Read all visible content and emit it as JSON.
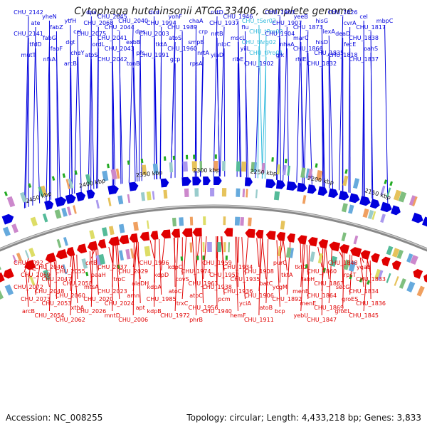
{
  "title": "Cytophaga hutchinsonii ATCC 33406, complete genome",
  "footer": {
    "accession": "Accession: NC_008255",
    "summary": "Topology: circular; Length: 4,433,218 bp; Genes: 3,833"
  },
  "colors": {
    "plus_strand": "#0000dd",
    "minus_strand": "#e00000",
    "trna": "#33bbdd",
    "backbone": "#888888",
    "tick": "#22aa22"
  },
  "scale_labels": [
    "2450 kbp",
    "2400 kbp",
    "2350 kbp",
    "2300 kbp",
    "2250 kbp",
    "2200 kbp",
    "2150 kbp"
  ],
  "top_labels": [
    {
      "text": "CHU_2142",
      "kind": "cds"
    },
    {
      "text": "ate",
      "kind": "cds"
    },
    {
      "text": "CHU_2141",
      "kind": "cds"
    },
    {
      "text": "tfdD",
      "kind": "cds"
    },
    {
      "text": "mutT",
      "kind": "cds"
    },
    {
      "text": "yheN",
      "kind": "cds"
    },
    {
      "text": "fabZ",
      "kind": "cds"
    },
    {
      "text": "fabG",
      "kind": "cds"
    },
    {
      "text": "fabF",
      "kind": "cds"
    },
    {
      "text": "nfsA",
      "kind": "cds"
    },
    {
      "text": "ytfH",
      "kind": "cds"
    },
    {
      "text": "cel",
      "kind": "cds"
    },
    {
      "text": "dgt",
      "kind": "cds"
    },
    {
      "text": "cheY",
      "kind": "cds"
    },
    {
      "text": "arcB",
      "kind": "cds"
    },
    {
      "text": "dps",
      "kind": "cds"
    },
    {
      "text": "CHU_2068",
      "kind": "cds"
    },
    {
      "text": "CHU_2075",
      "kind": "cds"
    },
    {
      "text": "ordL",
      "kind": "cds"
    },
    {
      "text": "atoS",
      "kind": "cds"
    },
    {
      "text": "CHU_2045",
      "kind": "cds"
    },
    {
      "text": "CHU_2044",
      "kind": "cds"
    },
    {
      "text": "CHU_2041",
      "kind": "cds"
    },
    {
      "text": "CHU_2043",
      "kind": "cds"
    },
    {
      "text": "CHU_2042",
      "kind": "cds"
    },
    {
      "text": "CHU_2040",
      "kind": "cds"
    },
    {
      "text": "dps",
      "kind": "cds"
    },
    {
      "text": "exbB",
      "kind": "cds"
    },
    {
      "text": "pfs",
      "kind": "cds"
    },
    {
      "text": "tonB",
      "kind": "cds"
    },
    {
      "text": "dcd",
      "kind": "cds"
    },
    {
      "text": "CHU_1994",
      "kind": "cds"
    },
    {
      "text": "CHU_2003",
      "kind": "cds"
    },
    {
      "text": "tktA",
      "kind": "cds"
    },
    {
      "text": "CHU_1991",
      "kind": "cds"
    },
    {
      "text": "yohF",
      "kind": "cds"
    },
    {
      "text": "CHU_1989",
      "kind": "cds"
    },
    {
      "text": "atoS",
      "kind": "cds"
    },
    {
      "text": "CHU_1960",
      "kind": "cds"
    },
    {
      "text": "gcp",
      "kind": "cds"
    },
    {
      "text": "chaA",
      "kind": "cds"
    },
    {
      "text": "crp",
      "kind": "cds"
    },
    {
      "text": "smpB",
      "kind": "cds"
    },
    {
      "text": "nrtA",
      "kind": "cds"
    },
    {
      "text": "rpsA",
      "kind": "cds"
    },
    {
      "text": "nrtD",
      "kind": "cds"
    },
    {
      "text": "CHU_1937",
      "kind": "cds"
    },
    {
      "text": "nrtB",
      "kind": "cds"
    },
    {
      "text": "nlpC",
      "kind": "cds"
    },
    {
      "text": "yiaD",
      "kind": "cds"
    },
    {
      "text": "CHU_1946",
      "kind": "cds"
    },
    {
      "text": "flu",
      "kind": "cds"
    },
    {
      "text": "mscL",
      "kind": "cds"
    },
    {
      "text": "yiiL",
      "kind": "cds"
    },
    {
      "text": "ribE",
      "kind": "cds"
    },
    {
      "text": "CHU_tSer02",
      "kind": "trna"
    },
    {
      "text": "CHU_tPro02",
      "kind": "trna"
    },
    {
      "text": "CHU_tArg02",
      "kind": "trna"
    },
    {
      "text": "CHU_tPro01",
      "kind": "trna"
    },
    {
      "text": "CHU_1902",
      "kind": "cds"
    },
    {
      "text": "CHU_1903",
      "kind": "cds"
    },
    {
      "text": "CHU_1907",
      "kind": "cds"
    },
    {
      "text": "CHU_1904",
      "kind": "cds"
    },
    {
      "text": "nhaA",
      "kind": "cds"
    },
    {
      "text": "glk",
      "kind": "cds"
    },
    {
      "text": "yeeB",
      "kind": "cds"
    },
    {
      "text": "CHU_1873",
      "kind": "cds"
    },
    {
      "text": "marC",
      "kind": "cds"
    },
    {
      "text": "CHU_1866",
      "kind": "cds"
    },
    {
      "text": "rhlE",
      "kind": "cds"
    },
    {
      "text": "hisG",
      "kind": "cds"
    },
    {
      "text": "lexA",
      "kind": "cds"
    },
    {
      "text": "hisD",
      "kind": "cds"
    },
    {
      "text": "CHU_1835",
      "kind": "cds"
    },
    {
      "text": "CHU_1832",
      "kind": "cds"
    },
    {
      "text": "CHU_1826",
      "kind": "cds"
    },
    {
      "text": "cvrA",
      "kind": "cds"
    },
    {
      "text": "deaD",
      "kind": "cds"
    },
    {
      "text": "fecE",
      "kind": "cds"
    },
    {
      "text": "CHU_1818",
      "kind": "cds"
    },
    {
      "text": "cel",
      "kind": "cds"
    },
    {
      "text": "CHU_1817",
      "kind": "cds"
    },
    {
      "text": "CHU_1838",
      "kind": "cds"
    },
    {
      "text": "oahS",
      "kind": "cds"
    },
    {
      "text": "CHU_1837",
      "kind": "cds"
    },
    {
      "text": "mbpC",
      "kind": "cds"
    }
  ],
  "bottom_labels": [
    "CHU_2092",
    "CHU_2069",
    "CHU_2072",
    "CHU_2073",
    "arcB",
    "CHU_2046",
    "CHU_2047",
    "CHU_2048",
    "CHU_2053",
    "CHU_2054",
    "CHU_2055",
    "CHU_2058",
    "CHU_2060",
    "xthA",
    "CHU_2062",
    "crtB",
    "paaH",
    "mtsA",
    "CHU_2020",
    "CHU_2026",
    "CHU_2037",
    "troC",
    "CHU_2023",
    "CHU_2024",
    "mntD",
    "CHU_2029",
    "alaDH",
    "amn",
    "apt",
    "CHU_2006",
    "CHU_1996",
    "kdpD",
    "kdpA",
    "CHU_1985",
    "kdpB",
    "kdpC",
    "covS",
    "atoC",
    "trxC",
    "CHU_1972",
    "CHU_1974",
    "CHU_1963",
    "atoC",
    "CHU_1956",
    "phrB",
    "CHU_1959",
    "CHU_1952",
    "CHU_1938",
    "pcm",
    "CHU_1940",
    "CHU_1934",
    "CHU_1935",
    "CHU_1936",
    "yciA",
    "hemF",
    "CHU_1908",
    "batC",
    "CHU_1906",
    "atoB",
    "CHU_1911",
    "purC",
    "tktA",
    "ycgM",
    "CHU_1892",
    "bcp",
    "tktC",
    "fabH",
    "menB",
    "menE",
    "yebU",
    "CHU_1860",
    "CHU_1863",
    "CHU_1864",
    "CHU_1869",
    "CHU_1847",
    "CHU_1848",
    "rpsT",
    "secG",
    "groES",
    "groEL",
    "yqaB",
    "CHU_1833",
    "CHU_1834",
    "CHU_1836",
    "CHU_1845"
  ]
}
